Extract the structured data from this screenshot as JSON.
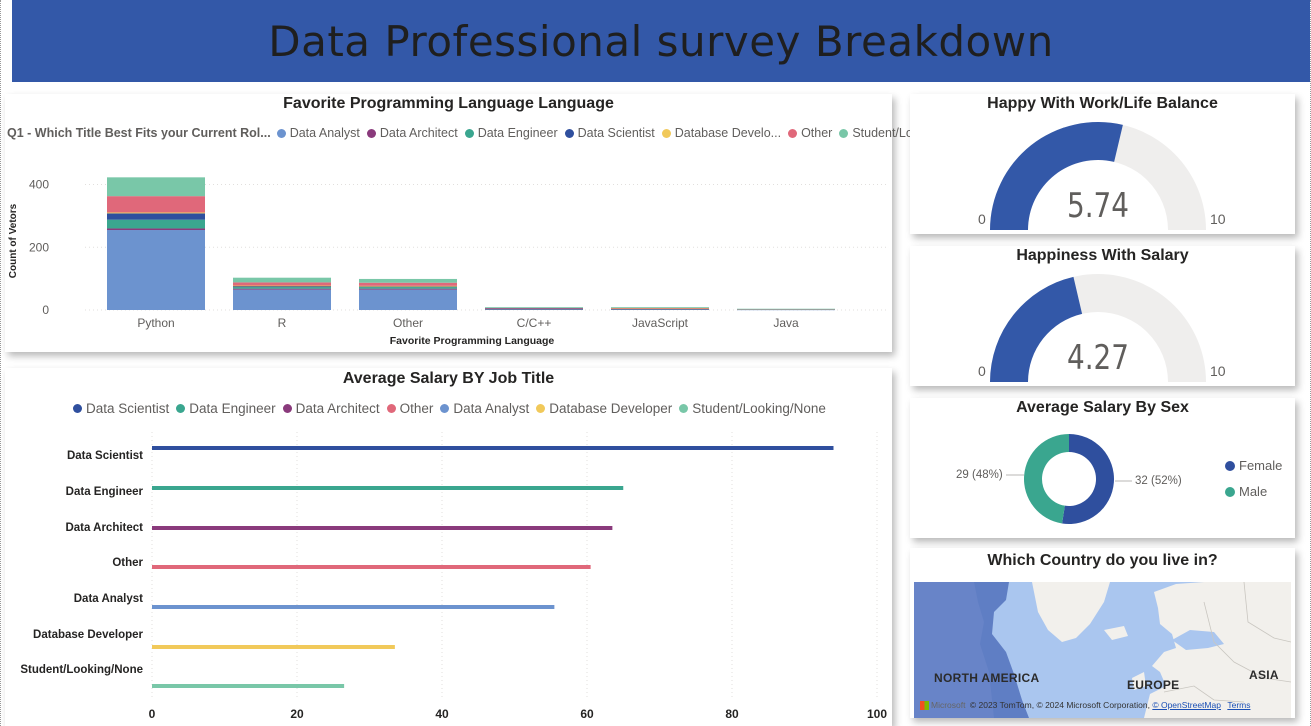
{
  "header": {
    "title": "Data Professional survey Breakdown"
  },
  "lang_chart": {
    "title": "Favorite Programming Language Language",
    "legend_title": "Q1 - Which Title Best Fits your Current Rol...",
    "legend": [
      {
        "name": "Data Analyst",
        "color": "#6c93cf"
      },
      {
        "name": "Data Architect",
        "color": "#8a3a7c"
      },
      {
        "name": "Data Engineer",
        "color": "#3aa68f"
      },
      {
        "name": "Data Scientist",
        "color": "#2f4f9e"
      },
      {
        "name": "Database Develo...",
        "color": "#f1c95a"
      },
      {
        "name": "Other",
        "color": "#e0687a"
      },
      {
        "name": "Student/Loo...",
        "color": "#79c7a8"
      }
    ],
    "ylabel": "Count of Vetors",
    "xlabel": "Favorite Programming Language",
    "yticks": [
      "0",
      "200",
      "400"
    ]
  },
  "salary_chart": {
    "title": "Average Salary BY Job Title",
    "legend": [
      {
        "name": "Data Scientist",
        "color": "#2f4f9e"
      },
      {
        "name": "Data Engineer",
        "color": "#3aa68f"
      },
      {
        "name": "Data Architect",
        "color": "#8a3a7c"
      },
      {
        "name": "Other",
        "color": "#e0687a"
      },
      {
        "name": "Data Analyst",
        "color": "#6c93cf"
      },
      {
        "name": "Database Developer",
        "color": "#f1c95a"
      },
      {
        "name": "Student/Looking/None",
        "color": "#79c7a8"
      }
    ],
    "xticks": [
      "0",
      "20",
      "40",
      "60",
      "80",
      "100"
    ]
  },
  "gauge_worklife": {
    "title": "Happy With Work/Life Balance",
    "min": "0",
    "max": "10",
    "value_label": "5.74"
  },
  "gauge_salary": {
    "title": "Happiness With Salary",
    "min": "0",
    "max": "10",
    "value_label": "4.27"
  },
  "sex_chart": {
    "title": "Average Salary By Sex",
    "labels": {
      "female": "32 (52%)",
      "male": "29 (48%)"
    },
    "legend": [
      {
        "name": "Female",
        "color": "#2f4f9e"
      },
      {
        "name": "Male",
        "color": "#3aa68f"
      }
    ]
  },
  "map": {
    "title": "Which Country do you live in?",
    "labels": {
      "north_america": "NORTH AMERICA",
      "europe": "EUROPE",
      "asia": "ASIA"
    },
    "credit": "© 2023 TomTom, © 2024 Microsoft Corporation,",
    "credit_link": "© OpenStreetMap",
    "terms": "Terms",
    "brand": "Microsoft"
  },
  "chart_data": [
    {
      "type": "bar",
      "stacked": true,
      "title": "Favorite Programming Language Language",
      "xlabel": "Favorite Programming Language",
      "ylabel": "Count of Vetors",
      "categories": [
        "Python",
        "R",
        "Other",
        "C/C++",
        "JavaScript",
        "Java"
      ],
      "ylim": [
        0,
        440
      ],
      "grid": true,
      "legend_position": "top",
      "series": [
        {
          "name": "Data Analyst",
          "color": "#6c93cf",
          "values": [
            255,
            65,
            65,
            3,
            3,
            2
          ]
        },
        {
          "name": "Data Architect",
          "color": "#8a3a7c",
          "values": [
            5,
            3,
            3,
            1,
            1,
            0
          ]
        },
        {
          "name": "Data Engineer",
          "color": "#3aa68f",
          "values": [
            28,
            5,
            5,
            1,
            1,
            0
          ]
        },
        {
          "name": "Data Scientist",
          "color": "#2f4f9e",
          "values": [
            20,
            4,
            3,
            1,
            0,
            0
          ]
        },
        {
          "name": "Database Develo...",
          "color": "#f1c95a",
          "values": [
            3,
            1,
            1,
            0,
            1,
            0
          ]
        },
        {
          "name": "Other",
          "color": "#e0687a",
          "values": [
            52,
            10,
            10,
            1,
            1,
            1
          ]
        },
        {
          "name": "Student/Loo...",
          "color": "#79c7a8",
          "values": [
            60,
            15,
            12,
            2,
            2,
            1
          ]
        }
      ]
    },
    {
      "type": "bar",
      "orientation": "horizontal",
      "title": "Average Salary BY Job Title",
      "categories": [
        "Data Scientist",
        "Data Engineer",
        "Data Architect",
        "Other",
        "Data Analyst",
        "Database Developer",
        "Student/Looking/None"
      ],
      "values": [
        94,
        65,
        63.5,
        60.5,
        55.5,
        33.5,
        26.5
      ],
      "colors": [
        "#2f4f9e",
        "#3aa68f",
        "#8a3a7c",
        "#e0687a",
        "#6c93cf",
        "#f1c95a",
        "#79c7a8"
      ],
      "xlim": [
        0,
        100
      ],
      "grid": true,
      "legend_position": "top"
    },
    {
      "type": "pie",
      "donut": true,
      "title": "Average Salary By Sex",
      "categories": [
        "Female",
        "Male"
      ],
      "values": [
        32,
        29
      ],
      "percent": [
        52,
        48
      ],
      "colors": [
        "#2f4f9e",
        "#3aa68f"
      ],
      "legend_position": "right"
    }
  ],
  "gauges": [
    {
      "title": "Happy With Work/Life Balance",
      "min": 0,
      "max": 10,
      "value": 5.74,
      "fill_color": "#3358a8",
      "track_color": "#efeeed"
    },
    {
      "title": "Happiness With Salary",
      "min": 0,
      "max": 10,
      "value": 4.27,
      "fill_color": "#3358a8",
      "track_color": "#efeeed"
    }
  ]
}
